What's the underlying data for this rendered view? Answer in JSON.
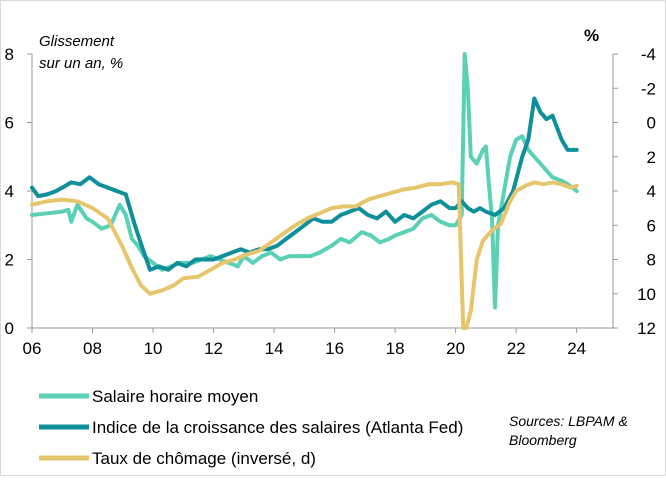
{
  "chart_data": {
    "type": "line",
    "y_left_label": "Glissement sur un an, %",
    "y_left_label_lines": [
      "Glissement",
      "sur un an, %"
    ],
    "y_right_label": "%",
    "x_ticks": [
      "06",
      "08",
      "10",
      "12",
      "14",
      "16",
      "18",
      "20",
      "22",
      "24"
    ],
    "x_range": [
      2006,
      2025.2
    ],
    "y_left_ticks": [
      "0",
      "2",
      "4",
      "6",
      "8"
    ],
    "y_left_range": [
      0,
      8
    ],
    "y_right_ticks": [
      "-4",
      "-2",
      "0",
      "2",
      "4",
      "6",
      "8",
      "10",
      "12"
    ],
    "y_right_range_inverted": [
      -4,
      12
    ],
    "grid": false,
    "legend_position": "bottom-left",
    "source": [
      "Sources: LBPAM &",
      "Bloomberg"
    ],
    "series": [
      {
        "name": "Salaire horaire moyen",
        "color": "#5ad0b5",
        "axis": "left",
        "points": [
          [
            2006.0,
            3.3
          ],
          [
            2006.5,
            3.35
          ],
          [
            2007.0,
            3.4
          ],
          [
            2007.2,
            3.45
          ],
          [
            2007.3,
            3.1
          ],
          [
            2007.5,
            3.6
          ],
          [
            2007.8,
            3.2
          ],
          [
            2008.0,
            3.1
          ],
          [
            2008.3,
            2.9
          ],
          [
            2008.6,
            3.0
          ],
          [
            2008.9,
            3.6
          ],
          [
            2009.1,
            3.3
          ],
          [
            2009.3,
            2.6
          ],
          [
            2009.5,
            2.4
          ],
          [
            2009.7,
            2.1
          ],
          [
            2010.0,
            1.9
          ],
          [
            2010.3,
            1.7
          ],
          [
            2010.6,
            1.8
          ],
          [
            2010.9,
            1.9
          ],
          [
            2011.3,
            1.9
          ],
          [
            2011.6,
            2.0
          ],
          [
            2011.9,
            2.1
          ],
          [
            2012.2,
            2.0
          ],
          [
            2012.5,
            1.9
          ],
          [
            2012.8,
            1.8
          ],
          [
            2013.0,
            2.1
          ],
          [
            2013.3,
            1.9
          ],
          [
            2013.6,
            2.1
          ],
          [
            2013.9,
            2.2
          ],
          [
            2014.2,
            2.0
          ],
          [
            2014.5,
            2.1
          ],
          [
            2014.9,
            2.1
          ],
          [
            2015.2,
            2.1
          ],
          [
            2015.5,
            2.2
          ],
          [
            2015.9,
            2.4
          ],
          [
            2016.2,
            2.6
          ],
          [
            2016.5,
            2.5
          ],
          [
            2016.9,
            2.8
          ],
          [
            2017.2,
            2.7
          ],
          [
            2017.5,
            2.5
          ],
          [
            2017.8,
            2.6
          ],
          [
            2018.0,
            2.7
          ],
          [
            2018.3,
            2.8
          ],
          [
            2018.6,
            2.9
          ],
          [
            2018.9,
            3.2
          ],
          [
            2019.2,
            3.3
          ],
          [
            2019.5,
            3.1
          ],
          [
            2019.8,
            3.0
          ],
          [
            2020.0,
            3.0
          ],
          [
            2020.2,
            3.3
          ],
          [
            2020.3,
            8.0
          ],
          [
            2020.4,
            7.0
          ],
          [
            2020.5,
            5.0
          ],
          [
            2020.7,
            4.8
          ],
          [
            2020.9,
            5.2
          ],
          [
            2021.0,
            5.3
          ],
          [
            2021.1,
            4.2
          ],
          [
            2021.2,
            3.2
          ],
          [
            2021.3,
            0.6
          ],
          [
            2021.4,
            3.0
          ],
          [
            2021.6,
            4.0
          ],
          [
            2021.8,
            5.0
          ],
          [
            2022.0,
            5.5
          ],
          [
            2022.2,
            5.6
          ],
          [
            2022.4,
            5.2
          ],
          [
            2022.6,
            5.0
          ],
          [
            2022.8,
            4.8
          ],
          [
            2023.0,
            4.6
          ],
          [
            2023.2,
            4.4
          ],
          [
            2023.5,
            4.3
          ],
          [
            2023.7,
            4.2
          ],
          [
            2024.0,
            4.0
          ]
        ]
      },
      {
        "name": "Indice de la croissance des salaires (Atlanta Fed)",
        "color": "#0e8f9a",
        "axis": "left",
        "points": [
          [
            2006.0,
            4.1
          ],
          [
            2006.2,
            3.85
          ],
          [
            2006.5,
            3.9
          ],
          [
            2006.8,
            4.0
          ],
          [
            2007.0,
            4.1
          ],
          [
            2007.3,
            4.25
          ],
          [
            2007.6,
            4.2
          ],
          [
            2007.9,
            4.4
          ],
          [
            2008.2,
            4.2
          ],
          [
            2008.5,
            4.1
          ],
          [
            2008.8,
            4.0
          ],
          [
            2009.1,
            3.9
          ],
          [
            2009.4,
            3.0
          ],
          [
            2009.7,
            2.2
          ],
          [
            2009.9,
            1.7
          ],
          [
            2010.2,
            1.8
          ],
          [
            2010.5,
            1.7
          ],
          [
            2010.8,
            1.9
          ],
          [
            2011.1,
            1.8
          ],
          [
            2011.4,
            2.0
          ],
          [
            2011.7,
            2.0
          ],
          [
            2012.0,
            2.0
          ],
          [
            2012.3,
            2.1
          ],
          [
            2012.6,
            2.2
          ],
          [
            2012.9,
            2.3
          ],
          [
            2013.2,
            2.2
          ],
          [
            2013.5,
            2.3
          ],
          [
            2013.8,
            2.3
          ],
          [
            2014.1,
            2.4
          ],
          [
            2014.4,
            2.6
          ],
          [
            2014.7,
            2.8
          ],
          [
            2015.0,
            3.0
          ],
          [
            2015.3,
            3.2
          ],
          [
            2015.6,
            3.1
          ],
          [
            2015.9,
            3.1
          ],
          [
            2016.2,
            3.3
          ],
          [
            2016.5,
            3.4
          ],
          [
            2016.8,
            3.5
          ],
          [
            2017.1,
            3.3
          ],
          [
            2017.4,
            3.2
          ],
          [
            2017.7,
            3.4
          ],
          [
            2018.0,
            3.1
          ],
          [
            2018.3,
            3.3
          ],
          [
            2018.6,
            3.2
          ],
          [
            2018.9,
            3.4
          ],
          [
            2019.2,
            3.6
          ],
          [
            2019.5,
            3.7
          ],
          [
            2019.8,
            3.5
          ],
          [
            2020.0,
            3.5
          ],
          [
            2020.2,
            3.7
          ],
          [
            2020.4,
            3.5
          ],
          [
            2020.6,
            3.4
          ],
          [
            2020.8,
            3.5
          ],
          [
            2021.0,
            3.4
          ],
          [
            2021.3,
            3.3
          ],
          [
            2021.6,
            3.5
          ],
          [
            2021.9,
            4.0
          ],
          [
            2022.2,
            5.0
          ],
          [
            2022.4,
            5.5
          ],
          [
            2022.6,
            6.7
          ],
          [
            2022.8,
            6.3
          ],
          [
            2023.0,
            6.1
          ],
          [
            2023.2,
            6.2
          ],
          [
            2023.5,
            5.5
          ],
          [
            2023.7,
            5.2
          ],
          [
            2024.0,
            5.2
          ]
        ]
      },
      {
        "name": "Taux de chômage (inversé, d)",
        "color": "#e5c66c",
        "axis": "right",
        "points": [
          [
            2006.0,
            4.8
          ],
          [
            2006.5,
            4.6
          ],
          [
            2007.0,
            4.5
          ],
          [
            2007.5,
            4.6
          ],
          [
            2008.0,
            5.0
          ],
          [
            2008.5,
            5.6
          ],
          [
            2009.0,
            7.3
          ],
          [
            2009.3,
            8.5
          ],
          [
            2009.6,
            9.5
          ],
          [
            2009.9,
            10.0
          ],
          [
            2010.3,
            9.8
          ],
          [
            2010.7,
            9.5
          ],
          [
            2011.0,
            9.1
          ],
          [
            2011.5,
            9.0
          ],
          [
            2011.9,
            8.6
          ],
          [
            2012.3,
            8.2
          ],
          [
            2012.7,
            8.0
          ],
          [
            2013.1,
            7.7
          ],
          [
            2013.5,
            7.5
          ],
          [
            2013.9,
            7.0
          ],
          [
            2014.3,
            6.5
          ],
          [
            2014.7,
            6.0
          ],
          [
            2015.1,
            5.6
          ],
          [
            2015.5,
            5.3
          ],
          [
            2015.9,
            5.0
          ],
          [
            2016.3,
            4.9
          ],
          [
            2016.7,
            4.9
          ],
          [
            2017.1,
            4.5
          ],
          [
            2017.5,
            4.3
          ],
          [
            2017.9,
            4.1
          ],
          [
            2018.3,
            3.9
          ],
          [
            2018.7,
            3.8
          ],
          [
            2019.1,
            3.6
          ],
          [
            2019.5,
            3.6
          ],
          [
            2019.9,
            3.5
          ],
          [
            2020.1,
            3.6
          ],
          [
            2020.25,
            12.0
          ],
          [
            2020.35,
            14.7
          ],
          [
            2020.5,
            11.0
          ],
          [
            2020.7,
            8.0
          ],
          [
            2020.9,
            6.9
          ],
          [
            2021.2,
            6.3
          ],
          [
            2021.5,
            5.9
          ],
          [
            2021.8,
            4.6
          ],
          [
            2022.0,
            4.0
          ],
          [
            2022.3,
            3.7
          ],
          [
            2022.6,
            3.5
          ],
          [
            2022.9,
            3.6
          ],
          [
            2023.2,
            3.5
          ],
          [
            2023.5,
            3.6
          ],
          [
            2023.8,
            3.8
          ],
          [
            2024.0,
            3.7
          ]
        ]
      }
    ]
  }
}
